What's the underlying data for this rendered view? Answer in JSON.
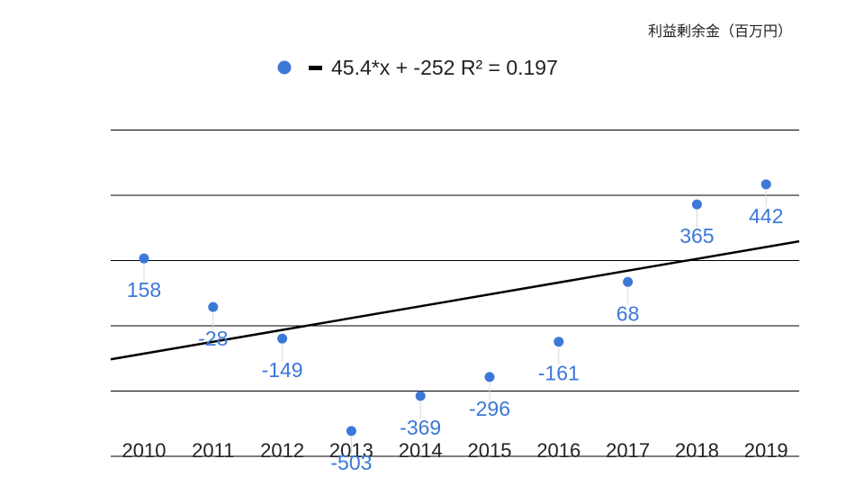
{
  "chart_data": {
    "type": "scatter",
    "title": "",
    "unit_label": "利益剰余金（百万円）",
    "xlabel": "",
    "ylabel": "",
    "x": [
      "2010",
      "2011",
      "2012",
      "2013",
      "2014",
      "2015",
      "2016",
      "2017",
      "2018",
      "2019"
    ],
    "series": [
      {
        "values": [
          158,
          -28,
          -149,
          -503,
          -369,
          -296,
          -161,
          68,
          365,
          442
        ],
        "data_labels": [
          "158",
          "-28",
          "-149",
          "-503",
          "-369",
          "-296",
          "-161",
          "68",
          "365",
          "442"
        ],
        "color": "#3c78d8"
      }
    ],
    "trendline": {
      "slope": 45.4,
      "intercept": -252,
      "r_squared": 0.197,
      "label": "45.4*x + -252 R² = 0.197",
      "color": "#000000"
    },
    "ylim": [
      -600,
      600
    ],
    "gridlines": [
      -600,
      -350,
      -100,
      150,
      400,
      650
    ],
    "grid": true,
    "legend_position": "top-center",
    "axis_tick_color": "#222222",
    "gridline_color": "#000000"
  }
}
